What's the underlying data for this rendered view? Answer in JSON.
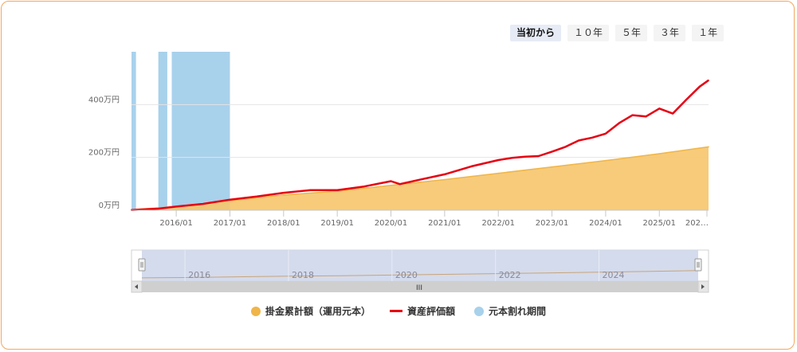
{
  "range_buttons": [
    "当初から",
    "１０年",
    "５年",
    "３年",
    "１年"
  ],
  "active_range": 0,
  "colors": {
    "contribution": "#f6c56b",
    "contribution_line": "#f0b548",
    "valuation": "#e60012",
    "underwater": "#a8d1ec",
    "navigator_fill": "#cfd7ea"
  },
  "legend": {
    "contribution": "掛金累計額（運用元本）",
    "valuation": "資産評価額",
    "underwater": "元本割れ期間"
  },
  "chart_data": {
    "type": "area",
    "x_unit": "month",
    "y_unit": "万円",
    "ylim": [
      0,
      600
    ],
    "y_ticks": [
      {
        "value": 0,
        "label": "0万円"
      },
      {
        "value": 200,
        "label": "200万円"
      },
      {
        "value": 400,
        "label": "400万円"
      }
    ],
    "x_range": [
      "2015-03",
      "2025-12"
    ],
    "x_ticks": [
      {
        "date": "2016-01",
        "label": "2016/01"
      },
      {
        "date": "2017-01",
        "label": "2017/01"
      },
      {
        "date": "2018-01",
        "label": "2018/01"
      },
      {
        "date": "2019-01",
        "label": "2019/01"
      },
      {
        "date": "2020-01",
        "label": "2020/01"
      },
      {
        "date": "2021-01",
        "label": "2021/01"
      },
      {
        "date": "2022-01",
        "label": "2022/01"
      },
      {
        "date": "2023-01",
        "label": "2023/01"
      },
      {
        "date": "2024-01",
        "label": "2024/01"
      },
      {
        "date": "2025-01",
        "label": "2025/01"
      },
      {
        "date": "2025-12",
        "label": "202…"
      }
    ],
    "series": [
      {
        "name": "掛金累計額（運用元本）",
        "kind": "area",
        "points": [
          {
            "date": "2015-03",
            "value": 2
          },
          {
            "date": "2016-01",
            "value": 14
          },
          {
            "date": "2017-01",
            "value": 36
          },
          {
            "date": "2018-01",
            "value": 58
          },
          {
            "date": "2019-01",
            "value": 72
          },
          {
            "date": "2020-01",
            "value": 94
          },
          {
            "date": "2021-01",
            "value": 116
          },
          {
            "date": "2022-01",
            "value": 140
          },
          {
            "date": "2023-01",
            "value": 164
          },
          {
            "date": "2024-01",
            "value": 188
          },
          {
            "date": "2025-01",
            "value": 214
          },
          {
            "date": "2025-12",
            "value": 240
          }
        ]
      },
      {
        "name": "資産評価額",
        "kind": "line",
        "points": [
          {
            "date": "2015-03",
            "value": 1
          },
          {
            "date": "2015-09",
            "value": 6
          },
          {
            "date": "2016-01",
            "value": 14
          },
          {
            "date": "2016-07",
            "value": 24
          },
          {
            "date": "2017-01",
            "value": 40
          },
          {
            "date": "2017-07",
            "value": 52
          },
          {
            "date": "2018-01",
            "value": 66
          },
          {
            "date": "2018-07",
            "value": 76
          },
          {
            "date": "2019-01",
            "value": 76
          },
          {
            "date": "2019-07",
            "value": 90
          },
          {
            "date": "2020-01",
            "value": 110
          },
          {
            "date": "2020-03",
            "value": 99
          },
          {
            "date": "2020-07",
            "value": 114
          },
          {
            "date": "2021-01",
            "value": 136
          },
          {
            "date": "2021-07",
            "value": 166
          },
          {
            "date": "2022-01",
            "value": 190
          },
          {
            "date": "2022-04",
            "value": 198
          },
          {
            "date": "2022-07",
            "value": 203
          },
          {
            "date": "2022-10",
            "value": 205
          },
          {
            "date": "2023-01",
            "value": 222
          },
          {
            "date": "2023-04",
            "value": 240
          },
          {
            "date": "2023-07",
            "value": 264
          },
          {
            "date": "2023-10",
            "value": 275
          },
          {
            "date": "2024-01",
            "value": 290
          },
          {
            "date": "2024-04",
            "value": 330
          },
          {
            "date": "2024-07",
            "value": 360
          },
          {
            "date": "2024-10",
            "value": 355
          },
          {
            "date": "2025-01",
            "value": 385
          },
          {
            "date": "2025-04",
            "value": 366
          },
          {
            "date": "2025-07",
            "value": 418
          },
          {
            "date": "2025-10",
            "value": 468
          },
          {
            "date": "2025-12",
            "value": 492
          }
        ]
      },
      {
        "name": "元本割れ期間",
        "kind": "band",
        "periods": [
          {
            "start": "2015-03",
            "end": "2015-03"
          },
          {
            "start": "2015-09",
            "end": "2015-10"
          },
          {
            "start": "2015-12",
            "end": "2016-12"
          }
        ]
      }
    ],
    "navigator": {
      "labels": [
        "2016",
        "2018",
        "2020",
        "2022",
        "2024"
      ],
      "scroll_grip": "III"
    }
  }
}
